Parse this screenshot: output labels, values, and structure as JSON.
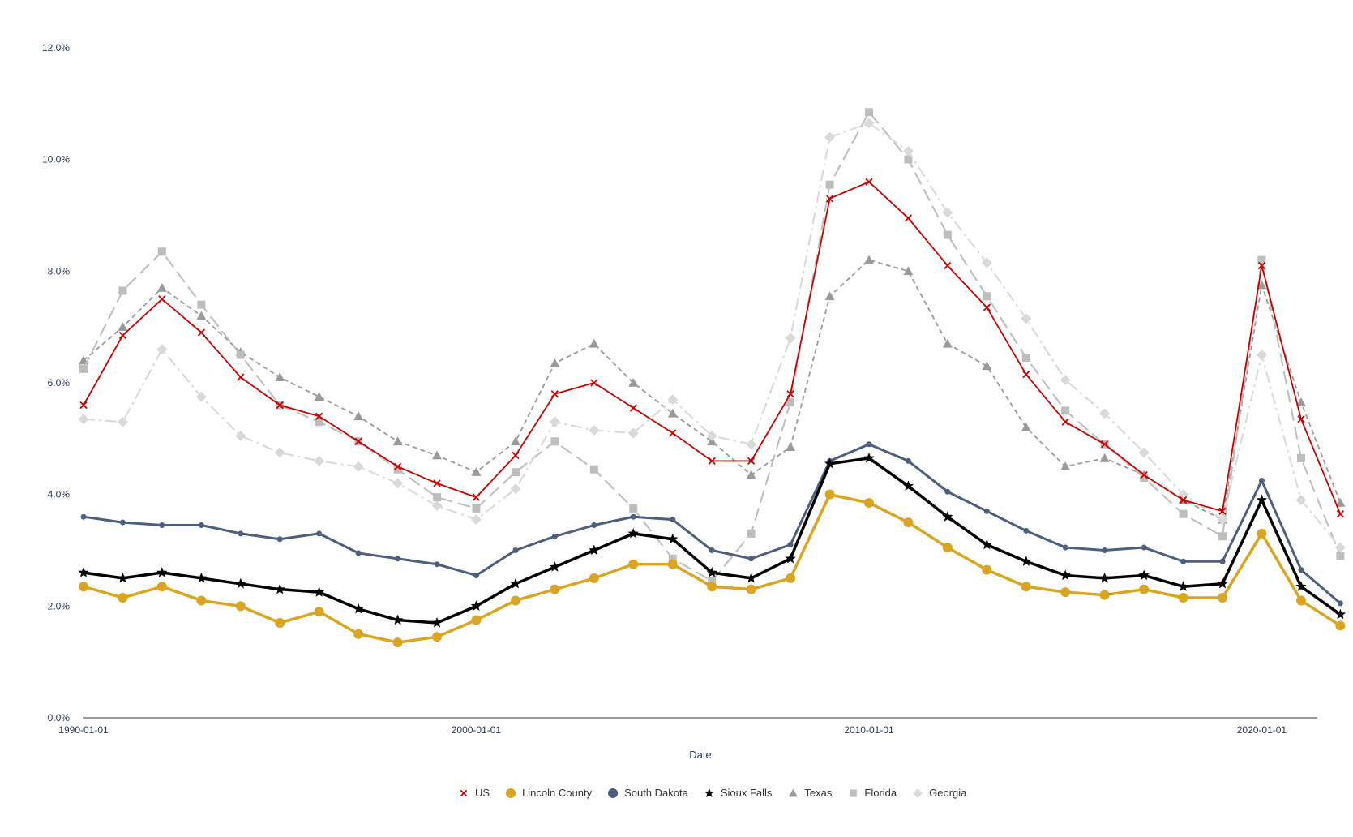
{
  "chart_data": {
    "type": "line",
    "title": "",
    "xlabel": "Date",
    "ylabel": "",
    "x_ticks": [
      "1990-01-01",
      "2000-01-01",
      "2010-01-01",
      "2020-01-01"
    ],
    "y_ticks": [
      "0.0%",
      "2.0%",
      "4.0%",
      "6.0%",
      "8.0%",
      "10.0%",
      "12.0%"
    ],
    "ylim": [
      0,
      12
    ],
    "xlim": [
      "1990-01-01",
      "2021-06-01"
    ],
    "grid": false,
    "legend_position": "bottom",
    "x": [
      "1990-01-01",
      "1991-01-01",
      "1992-01-01",
      "1993-01-01",
      "1994-01-01",
      "1995-01-01",
      "1996-01-01",
      "1997-01-01",
      "1998-01-01",
      "1999-01-01",
      "2000-01-01",
      "2001-01-01",
      "2002-01-01",
      "2003-01-01",
      "2004-01-01",
      "2005-01-01",
      "2006-01-01",
      "2007-01-01",
      "2008-01-01",
      "2009-01-01",
      "2010-01-01",
      "2011-01-01",
      "2012-01-01",
      "2013-01-01",
      "2014-01-01",
      "2015-01-01",
      "2016-01-01",
      "2017-01-01",
      "2018-01-01",
      "2019-01-01",
      "2020-01-01",
      "2021-01-01",
      "2022-01-01"
    ],
    "series": [
      {
        "name": "Texas",
        "color": "#9a9a9a",
        "marker": "triangle",
        "dash": "6,4",
        "width": 1.8,
        "values": [
          6.4,
          7.0,
          7.7,
          7.2,
          6.55,
          6.1,
          5.75,
          5.4,
          4.95,
          4.7,
          4.4,
          4.95,
          6.35,
          6.7,
          6.0,
          5.45,
          4.95,
          4.35,
          4.85,
          7.55,
          8.2,
          8.0,
          6.7,
          6.3,
          5.2,
          4.5,
          4.65,
          4.35,
          3.9,
          3.55,
          7.75,
          5.65,
          3.85
        ]
      },
      {
        "name": "Florida",
        "color": "#bdbdbd",
        "marker": "square",
        "dash": "16,7",
        "width": 2,
        "values": [
          6.25,
          7.65,
          8.35,
          7.4,
          6.5,
          5.6,
          5.3,
          4.95,
          4.45,
          3.95,
          3.75,
          4.4,
          4.95,
          4.45,
          3.75,
          2.85,
          2.45,
          3.3,
          5.65,
          9.55,
          10.85,
          10.0,
          8.65,
          7.55,
          6.45,
          5.5,
          4.9,
          4.3,
          3.65,
          3.25,
          8.2,
          4.65,
          2.9
        ]
      },
      {
        "name": "Georgia",
        "color": "#d9d9d9",
        "marker": "diamond",
        "dash": "14,5,3,5",
        "width": 2,
        "values": [
          5.35,
          5.3,
          6.6,
          5.75,
          5.05,
          4.75,
          4.6,
          4.5,
          4.2,
          3.8,
          3.55,
          4.1,
          5.3,
          5.15,
          5.1,
          5.7,
          5.05,
          4.9,
          6.8,
          10.4,
          10.65,
          10.15,
          9.05,
          8.15,
          7.15,
          6.05,
          5.45,
          4.75,
          4.0,
          3.55,
          6.5,
          3.9,
          3.05
        ]
      },
      {
        "name": "US",
        "color": "#cc0000",
        "marker": "x",
        "dash": "",
        "width": 1.8,
        "values": [
          5.6,
          6.85,
          7.5,
          6.9,
          6.1,
          5.6,
          5.4,
          4.95,
          4.5,
          4.2,
          3.95,
          4.7,
          5.8,
          6.0,
          5.55,
          5.1,
          4.6,
          4.6,
          5.8,
          9.3,
          9.6,
          8.95,
          8.1,
          7.35,
          6.15,
          5.3,
          4.9,
          4.35,
          3.9,
          3.7,
          8.1,
          5.35,
          3.65
        ]
      },
      {
        "name": "South Dakota",
        "color": "#4d5f7d",
        "marker": "circle-sm",
        "dash": "",
        "width": 3,
        "values": [
          3.6,
          3.5,
          3.45,
          3.45,
          3.3,
          3.2,
          3.3,
          2.95,
          2.85,
          2.75,
          2.55,
          3.0,
          3.25,
          3.45,
          3.6,
          3.55,
          3.0,
          2.85,
          3.1,
          4.6,
          4.9,
          4.6,
          4.05,
          3.7,
          3.35,
          3.05,
          3.0,
          3.05,
          2.8,
          2.8,
          4.25,
          2.65,
          2.05
        ]
      },
      {
        "name": "Sioux Falls",
        "color": "#000000",
        "marker": "star",
        "dash": "",
        "width": 3.5,
        "values": [
          2.6,
          2.5,
          2.6,
          2.5,
          2.4,
          2.3,
          2.25,
          1.95,
          1.75,
          1.7,
          2.0,
          2.4,
          2.7,
          3.0,
          3.3,
          3.2,
          2.6,
          2.5,
          2.85,
          4.55,
          4.65,
          4.15,
          3.6,
          3.1,
          2.8,
          2.55,
          2.5,
          2.55,
          2.35,
          2.4,
          3.9,
          2.35,
          1.85
        ]
      },
      {
        "name": "Lincoln County",
        "color": "#daa520",
        "marker": "circle",
        "dash": "",
        "width": 3.5,
        "values": [
          2.35,
          2.15,
          2.35,
          2.1,
          2.0,
          1.7,
          1.9,
          1.5,
          1.35,
          1.45,
          1.75,
          2.1,
          2.3,
          2.5,
          2.75,
          2.75,
          2.35,
          2.3,
          2.5,
          4.0,
          3.85,
          3.5,
          3.05,
          2.65,
          2.35,
          2.25,
          2.2,
          2.3,
          2.15,
          2.15,
          3.3,
          2.1,
          1.65
        ]
      }
    ],
    "legend": [
      {
        "label": "US",
        "marker": "x",
        "color": "#cc0000"
      },
      {
        "label": "Lincoln County",
        "marker": "circle",
        "color": "#daa520"
      },
      {
        "label": "South Dakota",
        "marker": "circle",
        "color": "#4d5f7d"
      },
      {
        "label": "Sioux Falls",
        "marker": "star",
        "color": "#000000"
      },
      {
        "label": "Texas",
        "marker": "triangle",
        "color": "#9a9a9a"
      },
      {
        "label": "Florida",
        "marker": "square",
        "color": "#bdbdbd"
      },
      {
        "label": "Georgia",
        "marker": "diamond",
        "color": "#d9d9d9"
      }
    ]
  }
}
